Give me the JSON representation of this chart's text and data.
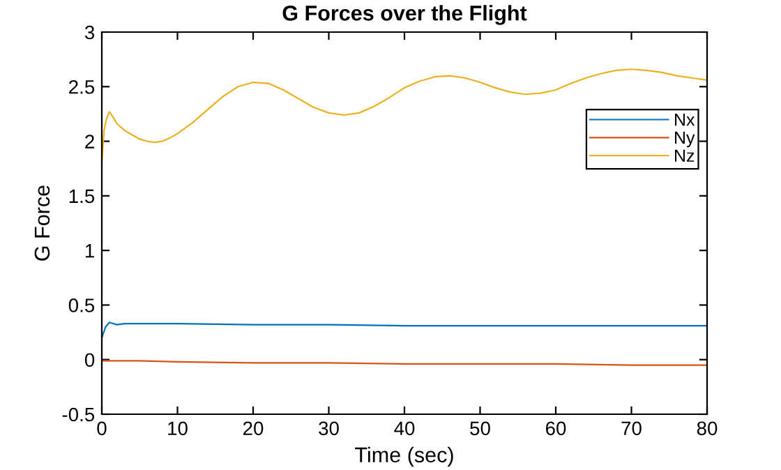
{
  "chart_data": {
    "type": "line",
    "title": "G Forces over the Flight",
    "xlabel": "Time (sec)",
    "ylabel": "G Force",
    "xlim": [
      0,
      80
    ],
    "xticks": [
      0,
      10,
      20,
      30,
      40,
      50,
      60,
      70,
      80
    ],
    "ylim": [
      -0.5,
      3
    ],
    "yticks": [
      -0.5,
      0,
      0.5,
      1,
      1.5,
      2,
      2.5,
      3
    ],
    "grid": false,
    "legend": "upper right",
    "marker": "none",
    "line_style": "solid",
    "series": [
      {
        "name": "Nx",
        "color": "#0072bd",
        "x": [
          0,
          0.5,
          1,
          1.5,
          2,
          3,
          5,
          8,
          10,
          20,
          30,
          40,
          50,
          60,
          70,
          80
        ],
        "values": [
          0.2,
          0.3,
          0.34,
          0.33,
          0.32,
          0.33,
          0.33,
          0.33,
          0.33,
          0.32,
          0.32,
          0.31,
          0.31,
          0.31,
          0.31,
          0.31
        ]
      },
      {
        "name": "Ny",
        "color": "#d95319",
        "x": [
          0,
          5,
          10,
          20,
          30,
          40,
          50,
          60,
          70,
          80
        ],
        "values": [
          -0.01,
          -0.01,
          -0.02,
          -0.03,
          -0.03,
          -0.04,
          -0.04,
          -0.04,
          -0.05,
          -0.05
        ]
      },
      {
        "name": "Nz",
        "color": "#edb120",
        "x": [
          0,
          0.3,
          0.6,
          1,
          1.5,
          2,
          3,
          4,
          5,
          6,
          7,
          8,
          9,
          10,
          12,
          14,
          16,
          18,
          20,
          22,
          24,
          26,
          28,
          30,
          32,
          34,
          36,
          38,
          40,
          42,
          44,
          46,
          48,
          50,
          52,
          54,
          56,
          58,
          60,
          62,
          64,
          66,
          68,
          70,
          72,
          74,
          76,
          78,
          80
        ],
        "values": [
          1.8,
          2.1,
          2.2,
          2.27,
          2.22,
          2.16,
          2.1,
          2.06,
          2.02,
          2.0,
          1.99,
          2.0,
          2.03,
          2.07,
          2.17,
          2.29,
          2.41,
          2.5,
          2.54,
          2.53,
          2.47,
          2.39,
          2.31,
          2.26,
          2.24,
          2.26,
          2.32,
          2.4,
          2.49,
          2.55,
          2.59,
          2.6,
          2.58,
          2.54,
          2.49,
          2.45,
          2.43,
          2.44,
          2.47,
          2.53,
          2.58,
          2.62,
          2.65,
          2.66,
          2.65,
          2.63,
          2.6,
          2.58,
          2.56
        ]
      }
    ]
  }
}
